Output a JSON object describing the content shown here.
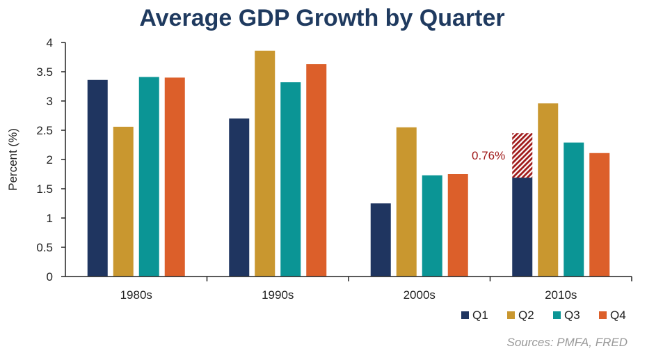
{
  "chart_data": {
    "type": "bar",
    "title": "Average GDP Growth by Quarter",
    "ylabel": "Percent (%)",
    "xlabel": "",
    "ylim": [
      0,
      4
    ],
    "yticks": [
      "0",
      "0.5",
      "1",
      "1.5",
      "2",
      "2.5",
      "3",
      "3.5",
      "4"
    ],
    "categories": [
      "1980s",
      "1990s",
      "2000s",
      "2010s"
    ],
    "series": [
      {
        "name": "Q1",
        "color": "#1f3560",
        "values": [
          3.36,
          2.7,
          1.25,
          1.69
        ]
      },
      {
        "name": "Q2",
        "color": "#c9972f",
        "values": [
          2.56,
          3.86,
          2.55,
          2.96
        ]
      },
      {
        "name": "Q3",
        "color": "#0b9595",
        "values": [
          3.41,
          3.32,
          1.73,
          2.29
        ]
      },
      {
        "name": "Q4",
        "color": "#dc5f2a",
        "values": [
          3.4,
          3.63,
          1.75,
          2.11
        ]
      }
    ],
    "annotation": {
      "text": "0.76%",
      "category": "2010s",
      "series": "Q1",
      "extra_value": 0.76,
      "color": "#a01a1a"
    },
    "legend_position": "bottom-right",
    "source": "Sources: PMFA, FRED",
    "grid": false
  }
}
